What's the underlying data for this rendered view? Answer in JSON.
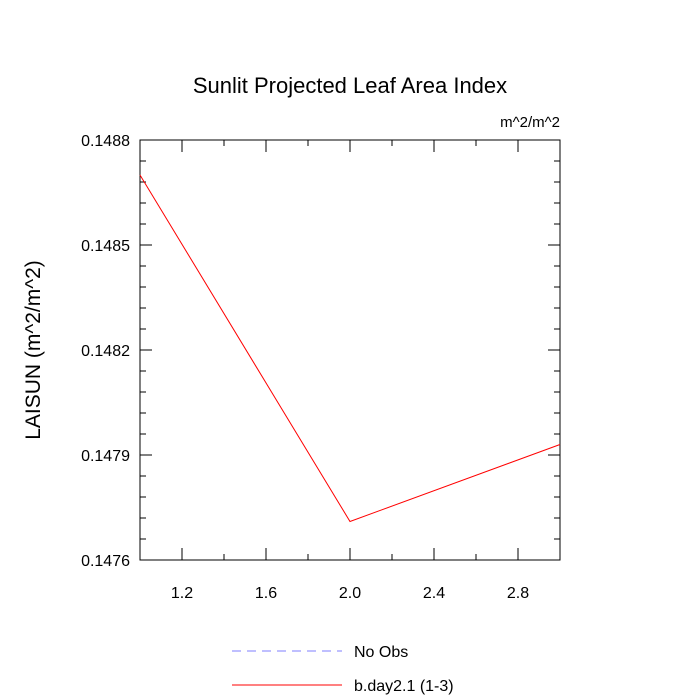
{
  "chart_data": {
    "type": "line",
    "title": "Sunlit Projected Leaf Area Index",
    "units": "m^2/m^2",
    "ylabel": "LAISUN  (m^2/m^2)",
    "xlabel": "",
    "xlim": [
      1.0,
      3.0
    ],
    "ylim": [
      0.1476,
      0.1488
    ],
    "x_ticks": [
      1.2,
      1.6,
      2.0,
      2.4,
      2.8
    ],
    "x_tick_labels": [
      "1.2",
      "1.6",
      "2.0",
      "2.4",
      "2.8"
    ],
    "y_ticks": [
      0.1476,
      0.1479,
      0.1482,
      0.1485,
      0.1488
    ],
    "y_tick_labels": [
      "0.1476",
      "0.1479",
      "0.1482",
      "0.1485",
      "0.1488"
    ],
    "series": [
      {
        "name": "b.day2.1 (1-3)",
        "color": "#ff0000",
        "x": [
          1.0,
          2.0,
          3.0
        ],
        "y": [
          0.1487,
          0.14771,
          0.14793
        ]
      }
    ],
    "legend": {
      "placement": "bottom",
      "entries": [
        {
          "label": "No Obs",
          "color": "#7f7fff",
          "style": "dashed"
        },
        {
          "label": "b.day2.1 (1-3)",
          "color": "#ff0000",
          "style": "solid"
        }
      ]
    }
  }
}
